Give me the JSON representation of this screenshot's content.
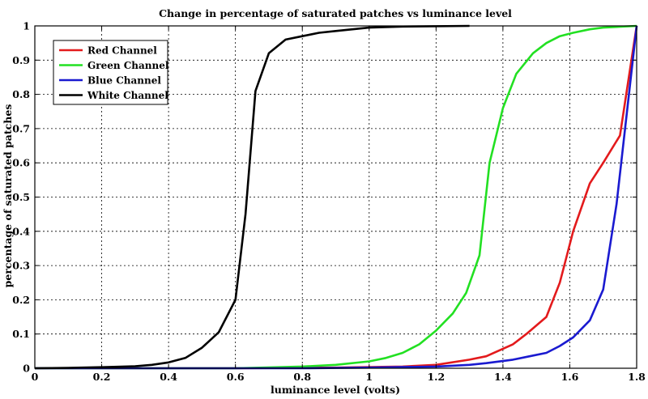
{
  "chart_data": {
    "type": "line",
    "title": "Change in percentage of saturated patches vs luminance level",
    "xlabel": "luminance level (volts)",
    "ylabel": "percentage of saturated patches",
    "xlim": [
      0,
      1.8
    ],
    "ylim": [
      0,
      1
    ],
    "xticks": [
      "0",
      "0.2",
      "0.4",
      "0.6",
      "0.8",
      "1",
      "1.2",
      "1.4",
      "1.6",
      "1.8"
    ],
    "yticks": [
      "0",
      "0.1",
      "0.2",
      "0.3",
      "0.4",
      "0.5",
      "0.6",
      "0.7",
      "0.8",
      "0.9",
      "1"
    ],
    "grid": true,
    "legend_position": "top-left",
    "series": [
      {
        "name": "Red Channel",
        "color": "#e31a1c",
        "x": [
          0,
          0.6,
          0.9,
          1.1,
          1.2,
          1.3,
          1.35,
          1.43,
          1.47,
          1.53,
          1.57,
          1.61,
          1.66,
          1.7,
          1.75,
          1.8
        ],
        "y": [
          0,
          0,
          0.002,
          0.005,
          0.01,
          0.025,
          0.035,
          0.07,
          0.1,
          0.15,
          0.25,
          0.4,
          0.54,
          0.6,
          0.68,
          1.0
        ]
      },
      {
        "name": "Green Channel",
        "color": "#22e022",
        "x": [
          0,
          0.6,
          0.8,
          0.9,
          1.0,
          1.05,
          1.1,
          1.15,
          1.2,
          1.25,
          1.29,
          1.33,
          1.36,
          1.4,
          1.44,
          1.49,
          1.53,
          1.57,
          1.61,
          1.66,
          1.7,
          1.8
        ],
        "y": [
          0,
          0,
          0.005,
          0.01,
          0.02,
          0.03,
          0.045,
          0.07,
          0.11,
          0.16,
          0.22,
          0.33,
          0.6,
          0.76,
          0.86,
          0.92,
          0.95,
          0.97,
          0.98,
          0.99,
          0.995,
          1.0
        ]
      },
      {
        "name": "Blue Channel",
        "color": "#1a1ad0",
        "x": [
          0,
          0.8,
          1.0,
          1.2,
          1.3,
          1.35,
          1.43,
          1.48,
          1.53,
          1.57,
          1.61,
          1.66,
          1.7,
          1.74,
          1.8
        ],
        "y": [
          0,
          0,
          0.002,
          0.005,
          0.01,
          0.015,
          0.025,
          0.035,
          0.045,
          0.065,
          0.09,
          0.14,
          0.23,
          0.48,
          1.0
        ]
      },
      {
        "name": "White Channel",
        "color": "#000000",
        "x": [
          0,
          0.1,
          0.2,
          0.3,
          0.35,
          0.4,
          0.45,
          0.5,
          0.55,
          0.6,
          0.63,
          0.66,
          0.7,
          0.75,
          0.8,
          0.85,
          0.9,
          0.95,
          1.0,
          1.1,
          1.3
        ],
        "y": [
          0,
          0.001,
          0.003,
          0.006,
          0.01,
          0.017,
          0.03,
          0.06,
          0.105,
          0.2,
          0.45,
          0.81,
          0.92,
          0.96,
          0.97,
          0.98,
          0.985,
          0.99,
          0.995,
          0.998,
          1.0
        ]
      }
    ]
  }
}
